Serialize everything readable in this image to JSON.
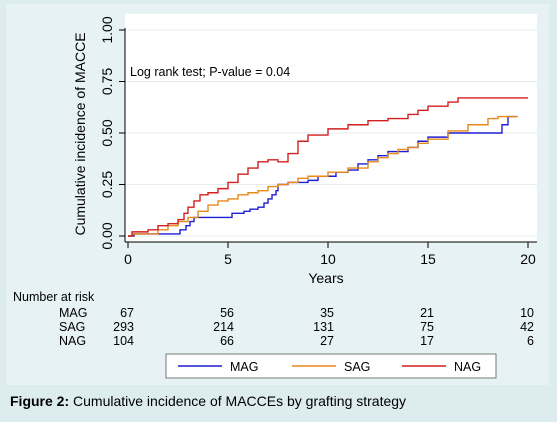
{
  "chart_data": {
    "type": "line",
    "step": true,
    "annotation": "Log rank test; P-value = 0.04",
    "xlabel": "Years",
    "ylabel": "Cumulative incidence of MACCE",
    "xlim": [
      0,
      20
    ],
    "ylim": [
      0,
      1
    ],
    "x_ticks": [
      0,
      5,
      10,
      15,
      20
    ],
    "y_ticks": [
      0.0,
      0.25,
      0.5,
      0.75,
      1.0
    ],
    "y_tick_labels": [
      "0.00",
      "0.25",
      "0.50",
      "0.75",
      "1.00"
    ],
    "grid": true,
    "legend_placement": "bottom",
    "series": [
      {
        "name": "MAG",
        "color": "#1f1fd1",
        "points": [
          [
            0,
            0
          ],
          [
            0.3,
            0.01
          ],
          [
            2.5,
            0.01
          ],
          [
            2.6,
            0.03
          ],
          [
            2.9,
            0.05
          ],
          [
            3.1,
            0.07
          ],
          [
            3.3,
            0.09
          ],
          [
            5.1,
            0.09
          ],
          [
            5.2,
            0.11
          ],
          [
            5.8,
            0.12
          ],
          [
            6.1,
            0.13
          ],
          [
            6.5,
            0.14
          ],
          [
            6.8,
            0.16
          ],
          [
            7.0,
            0.18
          ],
          [
            7.2,
            0.2
          ],
          [
            7.4,
            0.22
          ],
          [
            7.5,
            0.25
          ],
          [
            8.0,
            0.26
          ],
          [
            9.0,
            0.27
          ],
          [
            9.5,
            0.29
          ],
          [
            10.4,
            0.31
          ],
          [
            11,
            0.32
          ],
          [
            11.5,
            0.35
          ],
          [
            12,
            0.37
          ],
          [
            12.5,
            0.39
          ],
          [
            13,
            0.41
          ],
          [
            14,
            0.43
          ],
          [
            14.5,
            0.46
          ],
          [
            15,
            0.48
          ],
          [
            16,
            0.5
          ],
          [
            18.5,
            0.5
          ],
          [
            18.7,
            0.54
          ],
          [
            19,
            0.58
          ],
          [
            19.4,
            0.58
          ]
        ]
      },
      {
        "name": "SAG",
        "color": "#e8891a",
        "points": [
          [
            0,
            0
          ],
          [
            0.2,
            0.01
          ],
          [
            1.5,
            0.03
          ],
          [
            2.0,
            0.05
          ],
          [
            2.5,
            0.07
          ],
          [
            3.0,
            0.09
          ],
          [
            3.5,
            0.12
          ],
          [
            4.0,
            0.15
          ],
          [
            4.5,
            0.17
          ],
          [
            5,
            0.18
          ],
          [
            5.5,
            0.2
          ],
          [
            6.0,
            0.21
          ],
          [
            6.5,
            0.22
          ],
          [
            7.0,
            0.24
          ],
          [
            7.5,
            0.25
          ],
          [
            8,
            0.26
          ],
          [
            8.5,
            0.28
          ],
          [
            9,
            0.29
          ],
          [
            10,
            0.31
          ],
          [
            11,
            0.33
          ],
          [
            12,
            0.36
          ],
          [
            12.5,
            0.38
          ],
          [
            13,
            0.4
          ],
          [
            13.5,
            0.42
          ],
          [
            14,
            0.43
          ],
          [
            14.5,
            0.45
          ],
          [
            15,
            0.47
          ],
          [
            16,
            0.51
          ],
          [
            17,
            0.54
          ],
          [
            18,
            0.57
          ],
          [
            18.5,
            0.58
          ],
          [
            19.5,
            0.58
          ]
        ]
      },
      {
        "name": "NAG",
        "color": "#d41f1f",
        "points": [
          [
            0,
            0
          ],
          [
            0.2,
            0.02
          ],
          [
            1.0,
            0.03
          ],
          [
            1.5,
            0.05
          ],
          [
            2.0,
            0.06
          ],
          [
            2.5,
            0.08
          ],
          [
            2.8,
            0.11
          ],
          [
            3.0,
            0.14
          ],
          [
            3.3,
            0.17
          ],
          [
            3.6,
            0.2
          ],
          [
            4.0,
            0.21
          ],
          [
            4.5,
            0.23
          ],
          [
            5,
            0.26
          ],
          [
            5.5,
            0.3
          ],
          [
            6.0,
            0.33
          ],
          [
            6.5,
            0.36
          ],
          [
            7.0,
            0.37
          ],
          [
            7.5,
            0.36
          ],
          [
            8.0,
            0.4
          ],
          [
            8.5,
            0.46
          ],
          [
            9,
            0.49
          ],
          [
            10,
            0.52
          ],
          [
            11,
            0.54
          ],
          [
            12,
            0.56
          ],
          [
            13,
            0.57
          ],
          [
            14,
            0.59
          ],
          [
            14.5,
            0.61
          ],
          [
            15,
            0.63
          ],
          [
            16,
            0.65
          ],
          [
            16.5,
            0.67
          ],
          [
            20,
            0.67
          ]
        ]
      }
    ]
  },
  "risk_table": {
    "title": "Number at risk",
    "x": [
      0,
      5,
      10,
      15,
      20
    ],
    "rows": [
      {
        "label": "MAG",
        "values": [
          "67",
          "56",
          "35",
          "21",
          "10"
        ]
      },
      {
        "label": "SAG",
        "values": [
          "293",
          "214",
          "131",
          "75",
          "42"
        ]
      },
      {
        "label": "NAG",
        "values": [
          "104",
          "66",
          "27",
          "17",
          "6"
        ]
      }
    ]
  },
  "caption": {
    "label": "Figure 2:",
    "text": " Cumulative incidence of MACCEs by grafting strategy"
  }
}
